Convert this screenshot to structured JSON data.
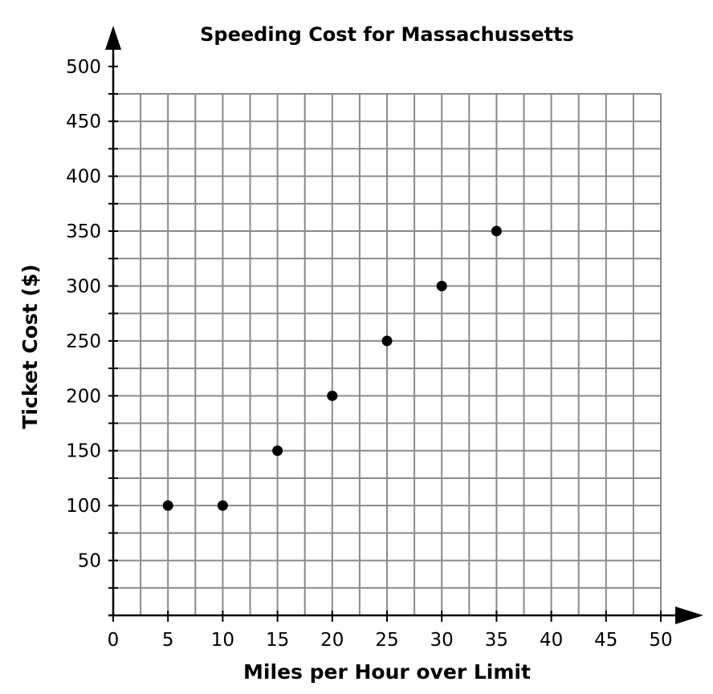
{
  "chart_data": {
    "type": "scatter",
    "title": "Speeding Cost for Massachussetts",
    "xlabel": "Miles per Hour over Limit",
    "ylabel": "Ticket Cost ($)",
    "xlim": [
      0,
      50
    ],
    "ylim": [
      0,
      500
    ],
    "x_ticks": [
      "0",
      "5",
      "10",
      "15",
      "20",
      "25",
      "30",
      "35",
      "40",
      "45",
      "50"
    ],
    "y_ticks": [
      "50",
      "100",
      "150",
      "200",
      "250",
      "300",
      "350",
      "400",
      "450",
      "500"
    ],
    "grid": true,
    "x_grid_step": 2.5,
    "y_grid_step": 25,
    "point_color": "#000000",
    "grid_color": "#8a8a8a",
    "points": [
      {
        "x": 5,
        "y": 100
      },
      {
        "x": 10,
        "y": 100
      },
      {
        "x": 15,
        "y": 150
      },
      {
        "x": 20,
        "y": 200
      },
      {
        "x": 25,
        "y": 250
      },
      {
        "x": 30,
        "y": 300
      },
      {
        "x": 35,
        "y": 350
      }
    ]
  }
}
